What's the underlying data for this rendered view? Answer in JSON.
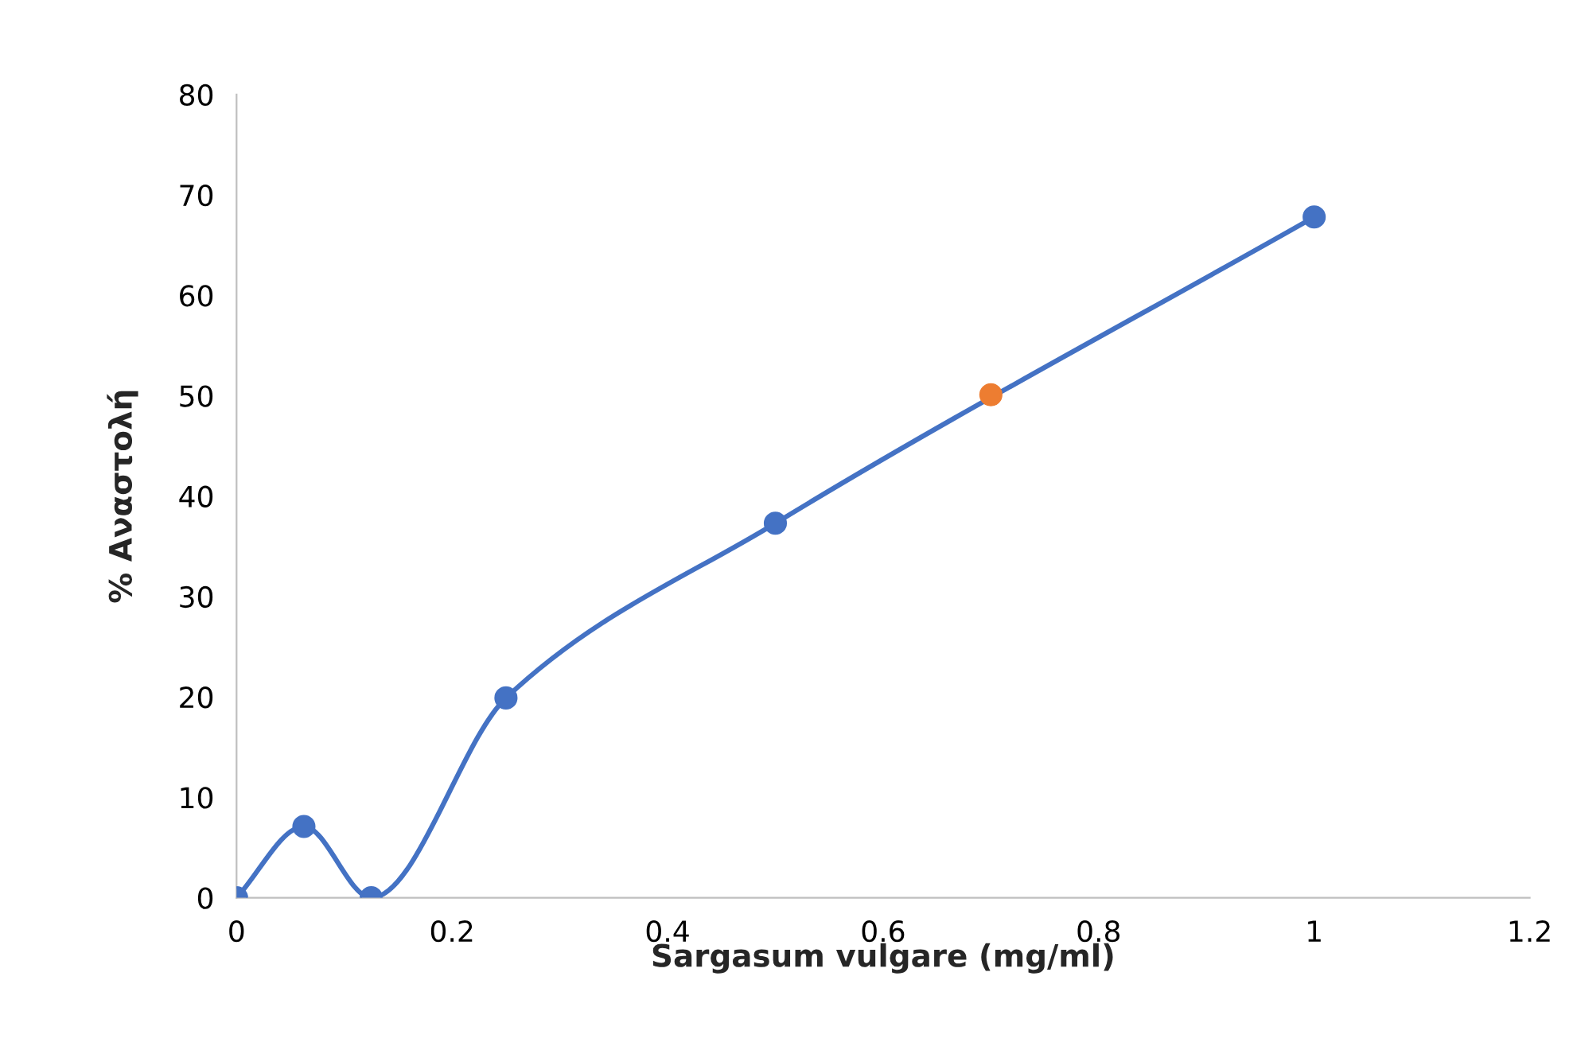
{
  "chart_data": {
    "type": "line",
    "xlabel": "Sargasum vulgare (mg/ml)",
    "ylabel": "% Αναστολή",
    "xlim": [
      0,
      1.2
    ],
    "xticks": [
      0,
      0.2,
      0.4,
      0.6,
      0.8,
      1,
      1.2
    ],
    "ylim": [
      0,
      80
    ],
    "yticks": [
      0,
      10,
      20,
      30,
      40,
      50,
      60,
      70,
      80
    ],
    "grid": false,
    "legend": false,
    "marker": "circle",
    "line_style": "solid",
    "series": [
      {
        "color": "#4472c4",
        "x": [
          0,
          0.0625,
          0.125,
          0.25,
          0.5,
          1
        ],
        "values": [
          0,
          7.1,
          0,
          19.9,
          37.3,
          67.8
        ]
      },
      {
        "type": "scatter",
        "color": "#ed7d31",
        "x": [
          0.7
        ],
        "values": [
          50.1
        ]
      }
    ]
  }
}
